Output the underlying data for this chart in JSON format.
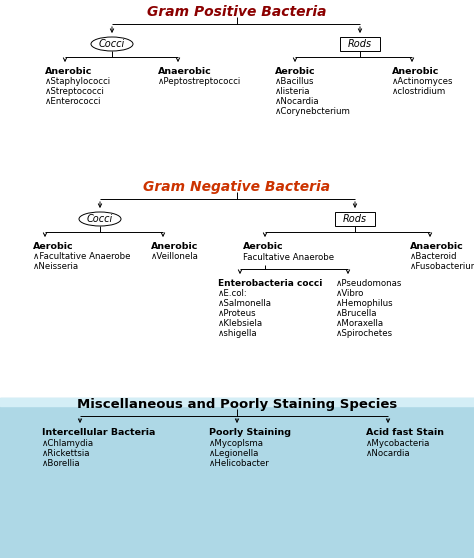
{
  "section_title_color_gp": "#8B0000",
  "section_title_color_gn": "#cc3300",
  "text_color": "#000000",
  "gram_pos_title": "Gram Positive Bacteria",
  "gram_neg_title": "Gram Negative Bacteria",
  "misc_title": "Miscellaneous and Poorly Staining Species",
  "gp_cocci_children": [
    {
      "label": "Anerobic",
      "items": [
        "Staphylococci",
        "Streptococci",
        "Enterococci"
      ]
    },
    {
      "label": "Anaerobic",
      "items": [
        "Peptostreptococci"
      ]
    }
  ],
  "gp_rods_children": [
    {
      "label": "Aerobic",
      "items": [
        "Bacillus",
        "listeria",
        "Nocardia",
        "Corynebcterium"
      ]
    },
    {
      "label": "Anerobic",
      "items": [
        "Actinomyces",
        "clostridium"
      ]
    }
  ],
  "gn_cocci_children": [
    {
      "label": "Aerobic",
      "items": [
        "Facultative Anaerobe",
        "Neisseria"
      ]
    },
    {
      "label": "Anerobic",
      "items": [
        "Veillonela"
      ]
    }
  ],
  "gn_rods_aerobic_label": "Aerobic",
  "gn_rods_aerobic_sublabel": "Facultative Anaerobe",
  "gn_rods_aerobic_left_label": "Enterobacteria cocci",
  "gn_rods_aerobic_left_items": [
    "E.col:",
    "Salmonella",
    "Proteus",
    "Klebsiela",
    "shigella"
  ],
  "gn_rods_aerobic_right_items": [
    "Pseudomonas",
    "Vibro",
    "Hemophilus",
    "Brucella",
    "Moraxella",
    "Spirochetes"
  ],
  "gn_rods_anaerobic_label": "Anaerobic",
  "gn_rods_anaerobic_items": [
    "Bacteroid",
    "Fusobacterium"
  ],
  "misc_children": [
    {
      "label": "Intercellular Bacteria",
      "items": [
        "Chlamydia",
        "Rickettsia",
        "Borellia"
      ]
    },
    {
      "label": "Poorly Staining",
      "items": [
        "Mycoplsma",
        "Legionella",
        "Helicobacter"
      ]
    },
    {
      "label": "Acid fast Stain",
      "items": [
        "Mycobacteria",
        "Nocardia"
      ]
    }
  ],
  "misc_bg_color": "#aed8e6",
  "misc_bg_top_color": "#d4eef6"
}
